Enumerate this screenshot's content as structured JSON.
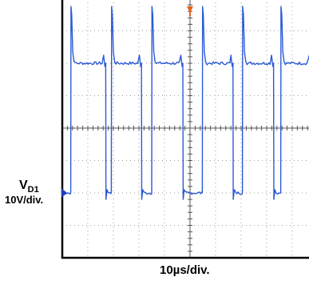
{
  "chart_data": {
    "type": "line",
    "channel": {
      "name_main": "V",
      "name_sub": "D1",
      "scale": "10V/div.",
      "color": "#2a5bd7",
      "marker_color": "#1f3fbf"
    },
    "timebase": {
      "scale": "10µs/div."
    },
    "trigger_marker_color": "#e8601c",
    "grid": true,
    "divisions": {
      "x": 10,
      "y": 8
    },
    "waveform": {
      "description_units": "divisions",
      "x_range_div": [
        0,
        10
      ],
      "baseline_div": -2.0,
      "plateau_div": 2.0,
      "spike_peak_div": 3.75,
      "rise_edges_div": [
        0.33,
        1.92,
        3.5,
        5.48,
        7.05,
        8.55
      ],
      "fall_edges_div": [
        1.7,
        3.1,
        4.72,
        6.68,
        8.27,
        9.75
      ]
    }
  }
}
